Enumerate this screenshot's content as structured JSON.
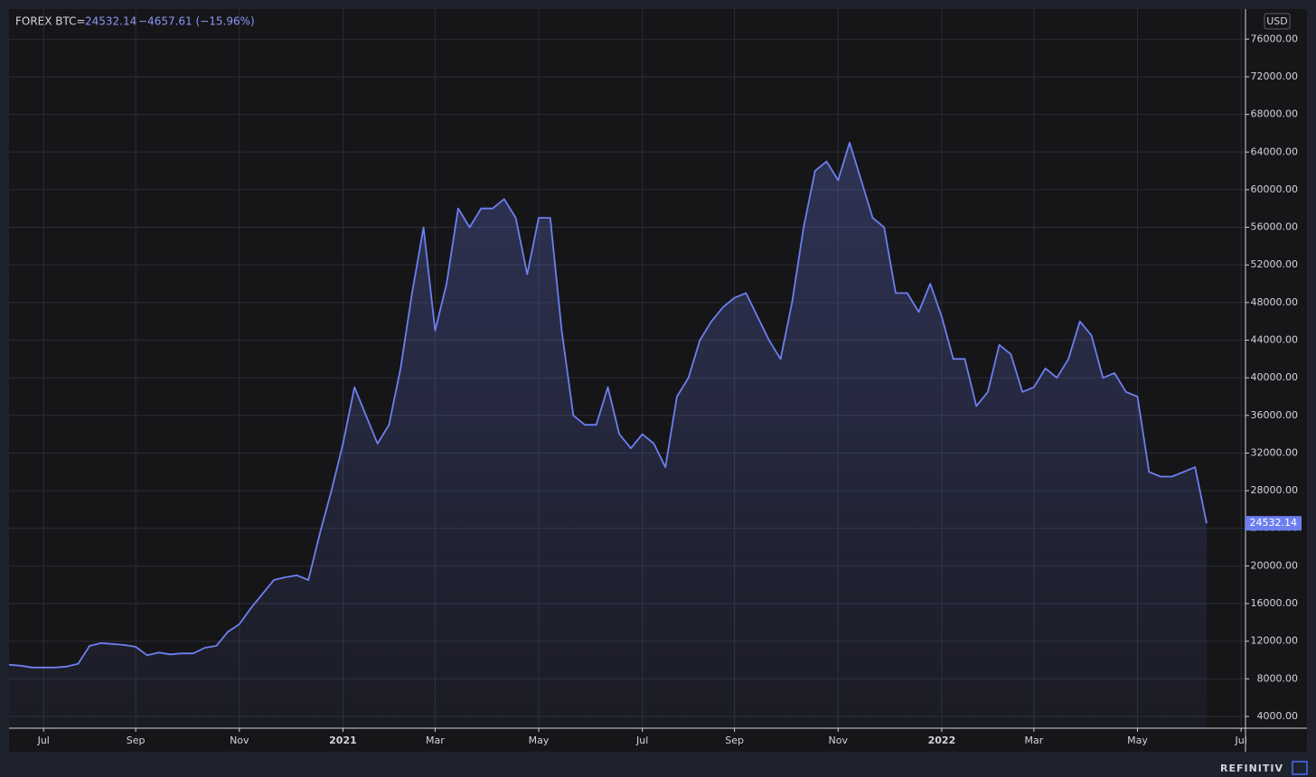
{
  "chart_data": {
    "type": "area",
    "title": "FOREX BTC=",
    "quote_change": "−4657.61 (−15.96%)",
    "currency": "USD",
    "brand": "REFINITIV",
    "color": "#6d7ff0",
    "grid": true,
    "ylim": [
      2750,
      79200
    ],
    "yticks": [
      {
        "value": 4000,
        "label": "4000.00"
      },
      {
        "value": 8000,
        "label": "8000.00"
      },
      {
        "value": 12000,
        "label": "12000.00"
      },
      {
        "value": 16000,
        "label": "16000.00"
      },
      {
        "value": 20000,
        "label": "20000.00"
      },
      {
        "value": 24000,
        "label": "24000.00"
      },
      {
        "value": 28000,
        "label": "28000.00"
      },
      {
        "value": 32000,
        "label": "32000.00"
      },
      {
        "value": 36000,
        "label": "36000.00"
      },
      {
        "value": 40000,
        "label": "40000.00"
      },
      {
        "value": 44000,
        "label": "44000.00"
      },
      {
        "value": 48000,
        "label": "48000.00"
      },
      {
        "value": 52000,
        "label": "52000.00"
      },
      {
        "value": 56000,
        "label": "56000.00"
      },
      {
        "value": 60000,
        "label": "60000.00"
      },
      {
        "value": 64000,
        "label": "64000.00"
      },
      {
        "value": 68000,
        "label": "68000.00"
      },
      {
        "value": 72000,
        "label": "72000.00"
      },
      {
        "value": 76000,
        "label": "76000.00"
      }
    ],
    "categories": [
      null,
      null,
      null,
      "Jul",
      null,
      null,
      null,
      null,
      null,
      null,
      null,
      "Sep",
      null,
      null,
      null,
      null,
      null,
      null,
      null,
      null,
      "Nov",
      null,
      null,
      null,
      null,
      null,
      null,
      null,
      null,
      "2021",
      null,
      null,
      null,
      null,
      null,
      null,
      null,
      "Mar",
      null,
      null,
      null,
      null,
      null,
      null,
      null,
      null,
      "May",
      null,
      null,
      null,
      null,
      null,
      null,
      null,
      null,
      "Jul",
      null,
      null,
      null,
      null,
      null,
      null,
      null,
      "Sep",
      null,
      null,
      null,
      null,
      null,
      null,
      null,
      null,
      "Nov",
      null,
      null,
      null,
      null,
      null,
      null,
      null,
      null,
      "2022",
      null,
      null,
      null,
      null,
      null,
      null,
      null,
      "Mar",
      null,
      null,
      null,
      null,
      null,
      null,
      null,
      null,
      "May",
      null,
      null,
      null,
      null,
      null,
      null,
      null,
      null,
      "Jul"
    ],
    "values": [
      9500,
      9400,
      9200,
      9200,
      9200,
      9300,
      9600,
      11500,
      11800,
      11700,
      11600,
      11400,
      10500,
      10800,
      10600,
      10700,
      10700,
      11300,
      11500,
      13000,
      13800,
      15500,
      17000,
      18500,
      18800,
      19000,
      18500,
      23500,
      28000,
      33000,
      39000,
      36000,
      33000,
      35000,
      41000,
      49000,
      56000,
      45000,
      50000,
      58000,
      56000,
      58000,
      58000,
      59000,
      57000,
      51000,
      57000,
      57000,
      45000,
      36000,
      35000,
      35000,
      39000,
      34000,
      32500,
      34000,
      33000,
      30500,
      38000,
      40000,
      44000,
      46000,
      47500,
      48500,
      49000,
      46500,
      44000,
      42000,
      48000,
      56000,
      62000,
      63000,
      61000,
      65000,
      61000,
      57000,
      56000,
      49000,
      49000,
      47000,
      50000,
      46500,
      42000,
      42000,
      37000,
      38500,
      43500,
      42500,
      38500,
      39000,
      41000,
      40000,
      42000,
      46000,
      44500,
      40000,
      40500,
      38500,
      38000,
      30000,
      29500,
      29500,
      30000,
      30500,
      24532.14,
      null,
      null,
      null
    ]
  }
}
